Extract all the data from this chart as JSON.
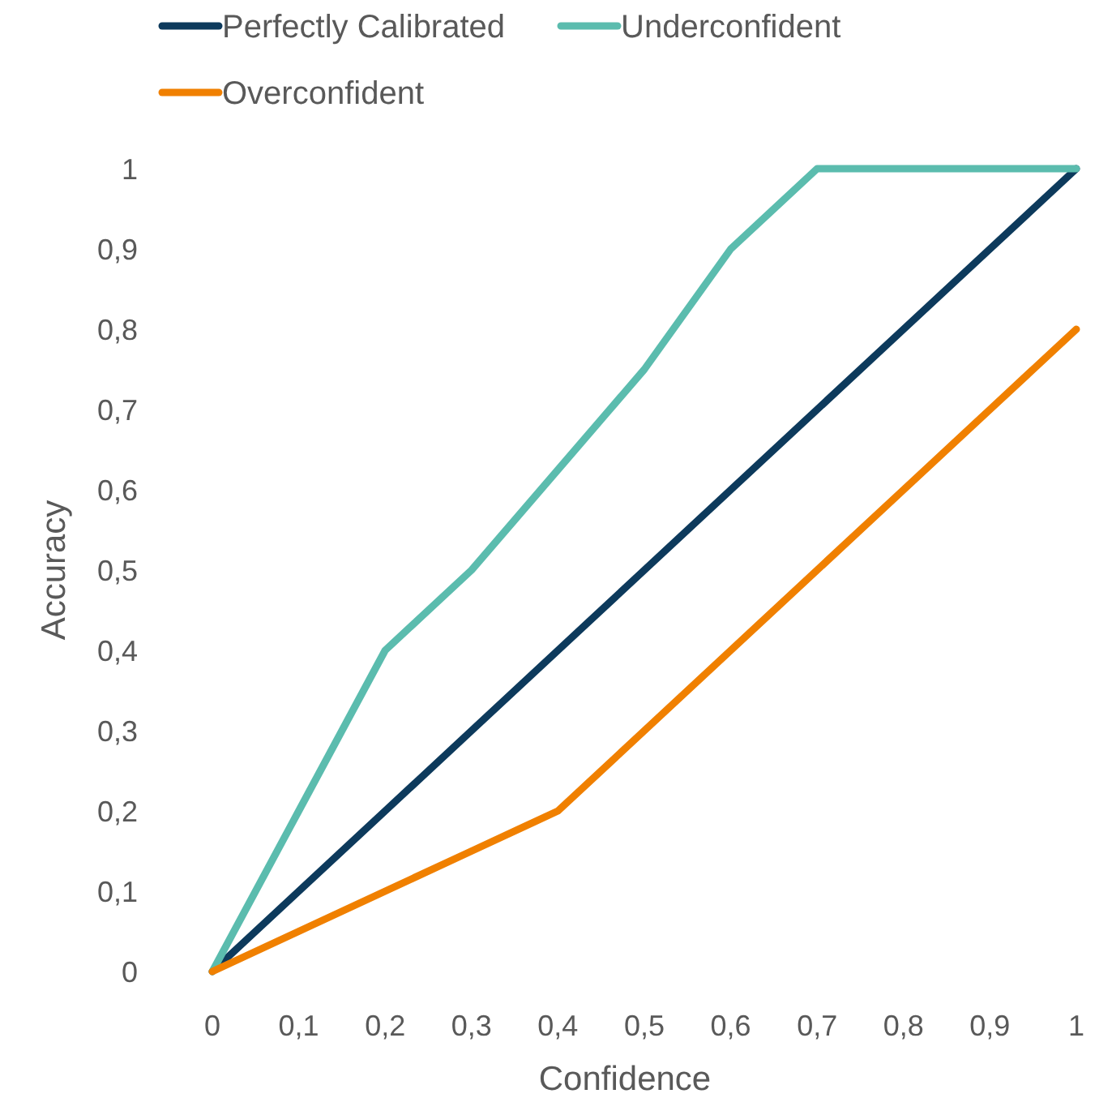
{
  "chart_data": {
    "type": "line",
    "xlabel": "Confidence",
    "ylabel": "Accuracy",
    "categories": [
      "0",
      "0,1",
      "0,2",
      "0,3",
      "0,4",
      "0,5",
      "0,6",
      "0,7",
      "0,8",
      "0,9",
      "1"
    ],
    "series": [
      {
        "name": "Perfectly Calibrated",
        "color": "#0d3a5c",
        "values": [
          0,
          0.1,
          0.2,
          0.3,
          0.4,
          0.5,
          0.6,
          0.7,
          0.8,
          0.9,
          1
        ]
      },
      {
        "name": "Underconfident",
        "color": "#5bbcae",
        "values": [
          0,
          0.2,
          0.4,
          0.5,
          0.625,
          0.75,
          0.9,
          1,
          1,
          1,
          1
        ]
      },
      {
        "name": "Overconfident",
        "color": "#f08000",
        "values": [
          0,
          0.05,
          0.1,
          0.15,
          0.2,
          0.3,
          0.4,
          0.5,
          0.6,
          0.7,
          0.8
        ]
      }
    ],
    "ylim": [
      0,
      1
    ],
    "yticks": [
      0,
      {
        "value": 0.1,
        "label": "0,1"
      },
      {
        "value": 0.2,
        "label": "0,2"
      },
      {
        "value": 0.3,
        "label": "0,3"
      },
      {
        "value": 0.4,
        "label": "0,4"
      },
      {
        "value": 0.5,
        "label": "0,5"
      },
      {
        "value": 0.6,
        "label": "0,6"
      },
      {
        "value": 0.7,
        "label": "0,7"
      },
      {
        "value": 0.8,
        "label": "0,8"
      },
      {
        "value": 0.9,
        "label": "0,9"
      },
      1
    ],
    "legend": "top",
    "marker": "none",
    "line_style": "solid",
    "grid": false
  }
}
